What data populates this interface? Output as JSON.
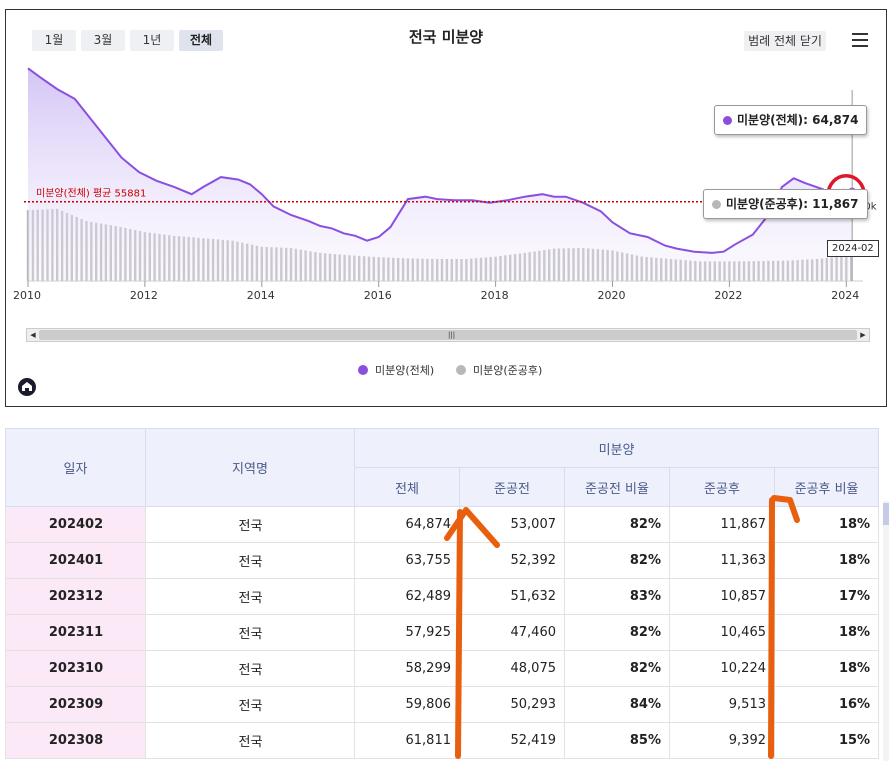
{
  "range_buttons": [
    {
      "label": "1월",
      "active": false
    },
    {
      "label": "3월",
      "active": false
    },
    {
      "label": "1년",
      "active": false
    },
    {
      "label": "전체",
      "active": true
    }
  ],
  "legend_toggle_label": "범례 전체 닫기",
  "chart_data": {
    "type": "area",
    "title": "전국 미분양",
    "x_ticks": [
      "2010",
      "2012",
      "2014",
      "2016",
      "2018",
      "2020",
      "2022",
      "2024"
    ],
    "x_range": [
      2010,
      2024.2
    ],
    "y_range": [
      0,
      180000
    ],
    "average_line": {
      "label": "미분양(전체) 평균 55881",
      "value": 55881,
      "color": "#cc0000"
    },
    "y_visible_tick": "50k",
    "series": [
      {
        "name": "미분양(전체)",
        "type": "area",
        "color": "#8b4fe0",
        "points": [
          [
            2010.0,
            165000
          ],
          [
            2010.2,
            158000
          ],
          [
            2010.5,
            148000
          ],
          [
            2010.8,
            140000
          ],
          [
            2011.0,
            128000
          ],
          [
            2011.3,
            110000
          ],
          [
            2011.6,
            92000
          ],
          [
            2011.9,
            80000
          ],
          [
            2012.2,
            73000
          ],
          [
            2012.5,
            68000
          ],
          [
            2012.8,
            62000
          ],
          [
            2013.0,
            68000
          ],
          [
            2013.3,
            76000
          ],
          [
            2013.6,
            74000
          ],
          [
            2013.8,
            70000
          ],
          [
            2014.0,
            62000
          ],
          [
            2014.2,
            52000
          ],
          [
            2014.5,
            45000
          ],
          [
            2014.8,
            40000
          ],
          [
            2015.0,
            36000
          ],
          [
            2015.2,
            34000
          ],
          [
            2015.4,
            30000
          ],
          [
            2015.6,
            28000
          ],
          [
            2015.8,
            24000
          ],
          [
            2016.0,
            27000
          ],
          [
            2016.2,
            35000
          ],
          [
            2016.5,
            58000
          ],
          [
            2016.8,
            60000
          ],
          [
            2017.0,
            58000
          ],
          [
            2017.3,
            57000
          ],
          [
            2017.6,
            57000
          ],
          [
            2017.9,
            55000
          ],
          [
            2018.2,
            57000
          ],
          [
            2018.5,
            60000
          ],
          [
            2018.8,
            62000
          ],
          [
            2019.0,
            60000
          ],
          [
            2019.2,
            60000
          ],
          [
            2019.5,
            55000
          ],
          [
            2019.8,
            48000
          ],
          [
            2020.0,
            39000
          ],
          [
            2020.3,
            30000
          ],
          [
            2020.6,
            27000
          ],
          [
            2020.9,
            20000
          ],
          [
            2021.1,
            17500
          ],
          [
            2021.4,
            15000
          ],
          [
            2021.7,
            14000
          ],
          [
            2021.9,
            15000
          ],
          [
            2022.1,
            21000
          ],
          [
            2022.4,
            29000
          ],
          [
            2022.7,
            47000
          ],
          [
            2022.9,
            68000
          ],
          [
            2023.1,
            75000
          ],
          [
            2023.3,
            71000
          ],
          [
            2023.6,
            66000
          ],
          [
            2023.8,
            59000
          ],
          [
            2023.95,
            57925
          ],
          [
            2024.0,
            62489
          ],
          [
            2024.05,
            63755
          ],
          [
            2024.1,
            64874
          ]
        ]
      },
      {
        "name": "미분양(준공후)",
        "type": "bar",
        "color": "#b8b8b8",
        "points": [
          [
            2010.0,
            49000
          ],
          [
            2010.5,
            50000
          ],
          [
            2011.0,
            40000
          ],
          [
            2011.5,
            36000
          ],
          [
            2012.0,
            31000
          ],
          [
            2012.5,
            28000
          ],
          [
            2013.0,
            26000
          ],
          [
            2013.5,
            24000
          ],
          [
            2014.0,
            19000
          ],
          [
            2014.5,
            18000
          ],
          [
            2015.0,
            14000
          ],
          [
            2015.5,
            12000
          ],
          [
            2016.0,
            10500
          ],
          [
            2016.5,
            9500
          ],
          [
            2017.0,
            9000
          ],
          [
            2017.5,
            9000
          ],
          [
            2018.0,
            11000
          ],
          [
            2018.5,
            14000
          ],
          [
            2019.0,
            17500
          ],
          [
            2019.5,
            18000
          ],
          [
            2020.0,
            16000
          ],
          [
            2020.5,
            11000
          ],
          [
            2021.0,
            9000
          ],
          [
            2021.5,
            7000
          ],
          [
            2022.0,
            7000
          ],
          [
            2022.5,
            7300
          ],
          [
            2023.0,
            7700
          ],
          [
            2023.5,
            9000
          ],
          [
            2023.8,
            10465
          ],
          [
            2024.1,
            11867
          ]
        ]
      }
    ],
    "tooltips": [
      {
        "series": "미분양(전체)",
        "text": "미분양(전체): 64,874",
        "color": "#8b4fe0"
      },
      {
        "series": "미분양(준공후)",
        "text": "미분양(준공후): 11,867",
        "color": "#b8b8b8"
      }
    ],
    "crosshair_label": "2024-02",
    "legend": [
      {
        "name": "미분양(전체)",
        "color": "#8b4fe0"
      },
      {
        "name": "미분양(준공후)",
        "color": "#b8b8b8"
      }
    ]
  },
  "table": {
    "group_header": "미분양",
    "headers": {
      "date": "일자",
      "region": "지역명",
      "total": "전체",
      "pre": "준공전",
      "pre_ratio": "준공전 비율",
      "post": "준공후",
      "post_ratio": "준공후 비율"
    },
    "rows": [
      {
        "date": "202402",
        "region": "전국",
        "total": "64,874",
        "pre": "53,007",
        "pre_ratio": "82%",
        "post": "11,867",
        "post_ratio": "18%"
      },
      {
        "date": "202401",
        "region": "전국",
        "total": "63,755",
        "pre": "52,392",
        "pre_ratio": "82%",
        "post": "11,363",
        "post_ratio": "18%"
      },
      {
        "date": "202312",
        "region": "전국",
        "total": "62,489",
        "pre": "51,632",
        "pre_ratio": "83%",
        "post": "10,857",
        "post_ratio": "17%"
      },
      {
        "date": "202311",
        "region": "전국",
        "total": "57,925",
        "pre": "47,460",
        "pre_ratio": "82%",
        "post": "10,465",
        "post_ratio": "18%"
      },
      {
        "date": "202310",
        "region": "전국",
        "total": "58,299",
        "pre": "48,075",
        "pre_ratio": "82%",
        "post": "10,224",
        "post_ratio": "18%"
      },
      {
        "date": "202309",
        "region": "전국",
        "total": "59,806",
        "pre": "50,293",
        "pre_ratio": "84%",
        "post": "9,513",
        "post_ratio": "16%"
      },
      {
        "date": "202308",
        "region": "전국",
        "total": "61,811",
        "pre": "52,419",
        "pre_ratio": "85%",
        "post": "9,392",
        "post_ratio": "15%"
      }
    ]
  },
  "annotation_colors": {
    "arrow": "#e8600e",
    "circle": "#e0162b"
  }
}
